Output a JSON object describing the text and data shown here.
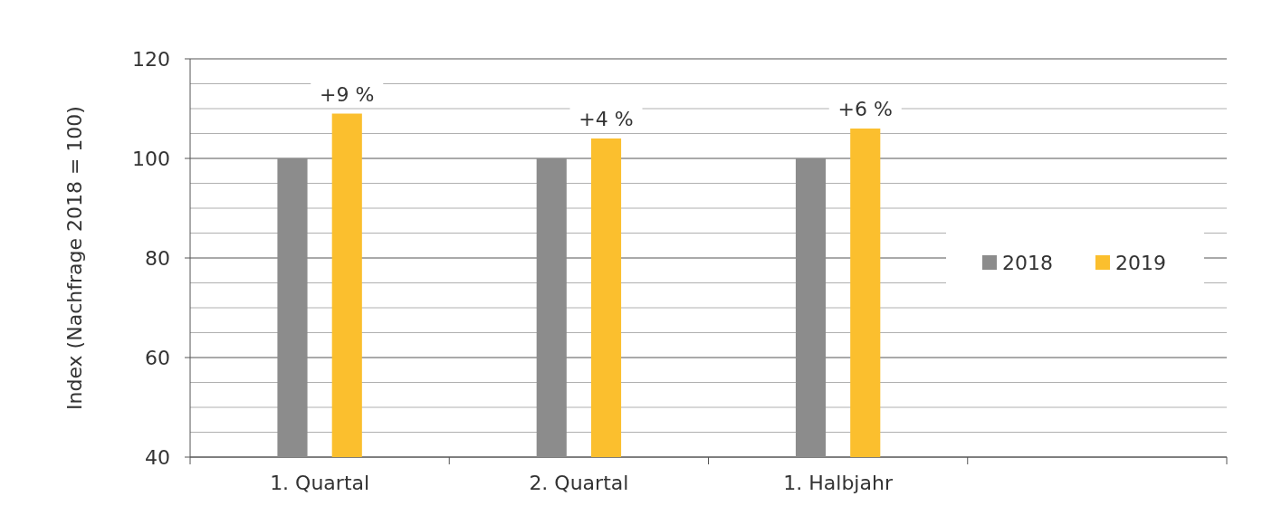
{
  "chart_data": {
    "type": "bar",
    "ylabel": "Index (Nachfrage 2018 = 100)",
    "categories": [
      "1. Quartal",
      "2. Quartal",
      "1. Halbjahr",
      null
    ],
    "series": [
      {
        "name": "2018",
        "color": "#8c8c8c",
        "values": [
          100,
          100,
          100,
          null
        ]
      },
      {
        "name": "2019",
        "color": "#fbbf2e",
        "values": [
          109,
          104,
          106,
          null
        ]
      }
    ],
    "annotations": [
      "+9 %",
      "+4 %",
      "+6 %"
    ],
    "ylim": [
      40,
      120
    ],
    "yticks": [
      40,
      {
        "value": 45,
        "label": null
      },
      {
        "value": 50,
        "label": null
      },
      {
        "value": 55,
        "label": null
      },
      60,
      {
        "value": 65,
        "label": null
      },
      {
        "value": 70,
        "label": null
      },
      {
        "value": 75,
        "label": null
      },
      80,
      {
        "value": 85,
        "label": null
      },
      {
        "value": 90,
        "label": null
      },
      {
        "value": 95,
        "label": null
      },
      100,
      {
        "value": 105,
        "label": null
      },
      {
        "value": 110,
        "label": null
      },
      {
        "value": 115,
        "label": null
      },
      120
    ],
    "grid": true,
    "legend": "right"
  }
}
